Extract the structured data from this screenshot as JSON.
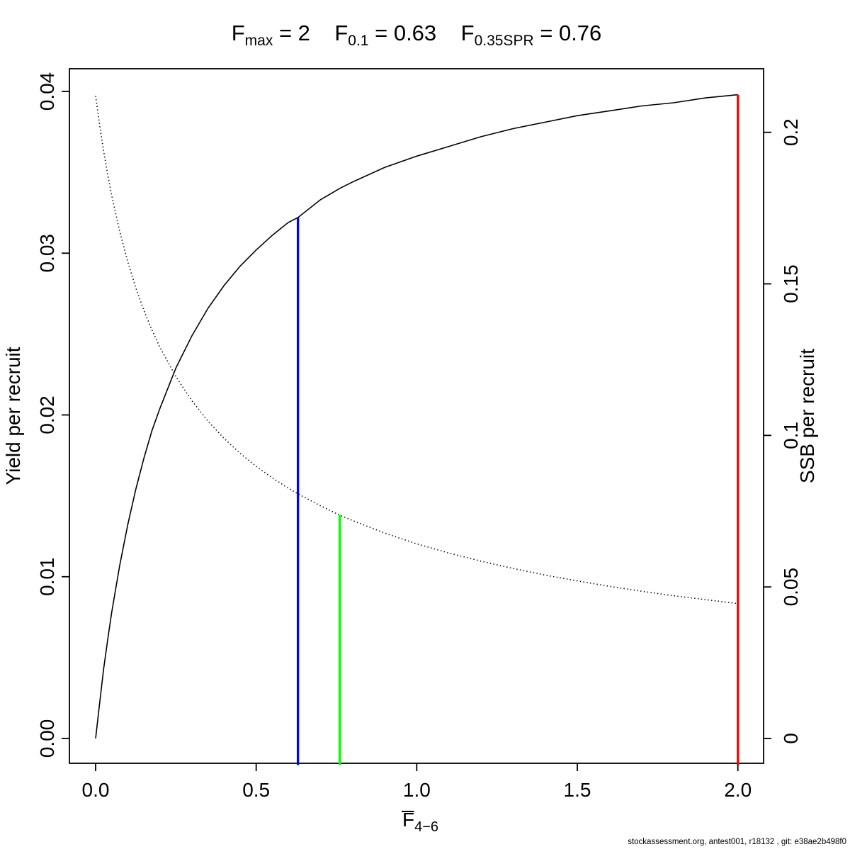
{
  "page": {
    "background": "#ffffff"
  },
  "footer": {
    "text": "stockassessment.org, antest001, r18132 , git: e38ae2b498f0"
  },
  "chart_data": {
    "type": "line",
    "title_segments": [
      {
        "base": "F",
        "sub": "max",
        "eq": "= 2"
      },
      {
        "base": "F",
        "sub": "0.1",
        "eq": "= 0.63"
      },
      {
        "base": "F",
        "sub": "0.35SPR",
        "eq": "= 0.76"
      }
    ],
    "xlabel": {
      "base": "F",
      "overbar": true,
      "sub": "4−6"
    },
    "ylabel_left": "Yield per recruit",
    "ylabel_right": "SSB per recruit",
    "grid": false,
    "legend": null,
    "x_axis": {
      "range": [
        0,
        2
      ],
      "ticks": [
        {
          "v": 0,
          "label": "0.0"
        },
        {
          "v": 0.5,
          "label": "0.5"
        },
        {
          "v": 1,
          "label": "1.0"
        },
        {
          "v": 1.5,
          "label": "1.5"
        },
        {
          "v": 2,
          "label": "2.0"
        }
      ]
    },
    "y_left_axis": {
      "range": [
        0,
        0.04
      ],
      "ticks": [
        {
          "v": 0,
          "label": "0.00"
        },
        {
          "v": 0.01,
          "label": "0.01"
        },
        {
          "v": 0.02,
          "label": "0.02"
        },
        {
          "v": 0.03,
          "label": "0.03"
        },
        {
          "v": 0.04,
          "label": "0.04"
        }
      ]
    },
    "y_right_axis": {
      "range": [
        0,
        0.2
      ],
      "ticks": [
        {
          "v": 0,
          "label": "0"
        },
        {
          "v": 0.05,
          "label": "0.05"
        },
        {
          "v": 0.1,
          "label": "0.1"
        },
        {
          "v": 0.15,
          "label": "0.15"
        },
        {
          "v": 0.2,
          "label": "0.2"
        }
      ]
    },
    "series": [
      {
        "name": "yield-per-recruit",
        "axis": "left",
        "style": "solid",
        "color": "#000000",
        "points": [
          [
            0,
            0
          ],
          [
            0.0125,
            0.0022
          ],
          [
            0.025,
            0.0043
          ],
          [
            0.0375,
            0.0061
          ],
          [
            0.05,
            0.0078
          ],
          [
            0.075,
            0.0107
          ],
          [
            0.1,
            0.0132
          ],
          [
            0.125,
            0.0154
          ],
          [
            0.15,
            0.0173
          ],
          [
            0.175,
            0.019
          ],
          [
            0.2,
            0.0204
          ],
          [
            0.25,
            0.0229
          ],
          [
            0.3,
            0.0249
          ],
          [
            0.35,
            0.0266
          ],
          [
            0.4,
            0.028
          ],
          [
            0.45,
            0.0292
          ],
          [
            0.5,
            0.0302
          ],
          [
            0.55,
            0.0311
          ],
          [
            0.6,
            0.0319
          ],
          [
            0.63,
            0.0322
          ],
          [
            0.7,
            0.0333
          ],
          [
            0.76,
            0.034
          ],
          [
            0.8,
            0.0344
          ],
          [
            0.9,
            0.0353
          ],
          [
            1,
            0.036
          ],
          [
            1.1,
            0.0366
          ],
          [
            1.2,
            0.0372
          ],
          [
            1.3,
            0.0377
          ],
          [
            1.4,
            0.0381
          ],
          [
            1.5,
            0.0385
          ],
          [
            1.6,
            0.0388
          ],
          [
            1.7,
            0.0391
          ],
          [
            1.8,
            0.0393
          ],
          [
            1.9,
            0.0396
          ],
          [
            2,
            0.0398
          ]
        ]
      },
      {
        "name": "ssb-per-recruit",
        "axis": "right",
        "style": "dotted",
        "color": "#000000",
        "points": [
          [
            0,
            0.212
          ],
          [
            0.0125,
            0.2023
          ],
          [
            0.025,
            0.1938
          ],
          [
            0.0375,
            0.1861
          ],
          [
            0.05,
            0.1792
          ],
          [
            0.075,
            0.1673
          ],
          [
            0.1,
            0.1573
          ],
          [
            0.125,
            0.1487
          ],
          [
            0.15,
            0.1413
          ],
          [
            0.175,
            0.1349
          ],
          [
            0.2,
            0.1291
          ],
          [
            0.25,
            0.1194
          ],
          [
            0.3,
            0.1114
          ],
          [
            0.35,
            0.1047
          ],
          [
            0.4,
            0.099
          ],
          [
            0.45,
            0.0941
          ],
          [
            0.5,
            0.0898
          ],
          [
            0.55,
            0.086
          ],
          [
            0.6,
            0.0826
          ],
          [
            0.63,
            0.0807
          ],
          [
            0.7,
            0.0768
          ],
          [
            0.76,
            0.0737
          ],
          [
            0.8,
            0.0719
          ],
          [
            0.9,
            0.0678
          ],
          [
            1,
            0.0642
          ],
          [
            1.1,
            0.0612
          ],
          [
            1.2,
            0.0585
          ],
          [
            1.3,
            0.0561
          ],
          [
            1.4,
            0.0539
          ],
          [
            1.5,
            0.052
          ],
          [
            1.6,
            0.0502
          ],
          [
            1.7,
            0.0486
          ],
          [
            1.8,
            0.0471
          ],
          [
            1.9,
            0.0458
          ],
          [
            2,
            0.0445
          ]
        ]
      }
    ],
    "reference_lines": [
      {
        "name": "F0.1",
        "x": 0.63,
        "top": 0.0322,
        "axis": "left",
        "color": "#0000ff"
      },
      {
        "name": "F0.35SPR",
        "x": 0.76,
        "top": 0.0737,
        "axis": "right",
        "color": "#00ff00"
      },
      {
        "name": "Fmax",
        "x": 2,
        "top": 0.0398,
        "axis": "left",
        "color": "#ff0000"
      }
    ]
  }
}
